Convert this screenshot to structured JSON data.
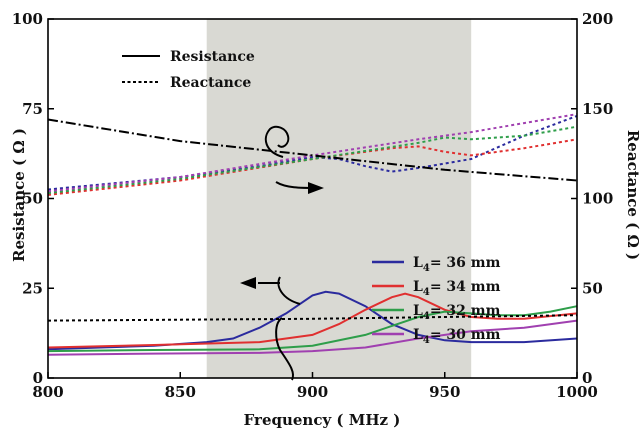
{
  "chart_data": {
    "type": "line",
    "xlabel": "Frequency ( MHz )",
    "ylabel_left": "Resistance ( Ω )",
    "ylabel_right": "Reactance ( Ω )",
    "xlim": [
      800,
      1000
    ],
    "ylim_left": [
      0,
      100
    ],
    "ylim_right": [
      0,
      200
    ],
    "x_ticks": [
      "800",
      "850",
      "900",
      "950",
      "1000"
    ],
    "y_left_ticks": [
      "0",
      "25",
      "50",
      "75",
      "100"
    ],
    "y_right_ticks": [
      "0",
      "50",
      "100",
      "150",
      "200"
    ],
    "shaded_band": [
      860,
      960
    ],
    "style_legend": [
      {
        "label": "Resistance",
        "style": "solid"
      },
      {
        "label": "Reactance",
        "style": "dotted"
      }
    ],
    "series_legend": [
      {
        "label": "L",
        "sub": "4",
        "suffix": "= 36 mm",
        "color": "#2b2b9e"
      },
      {
        "label": "L",
        "sub": "4",
        "suffix": "= 34 mm",
        "color": "#e03030"
      },
      {
        "label": "L",
        "sub": "4",
        "suffix": "= 32 mm",
        "color": "#2e9e4a"
      },
      {
        "label": "L",
        "sub": "4",
        "suffix": "= 30 mm",
        "color": "#a040b0"
      }
    ],
    "series": [
      {
        "type": "resistance",
        "color": "#2b2b9e",
        "axis": "left",
        "x": [
          800,
          820,
          840,
          860,
          870,
          880,
          890,
          900,
          905,
          910,
          920,
          930,
          940,
          950,
          960,
          980,
          1000
        ],
        "y": [
          8,
          8.5,
          9,
          10,
          11,
          14,
          18,
          23,
          24,
          23.5,
          20,
          15,
          12,
          10.5,
          10,
          10,
          11
        ]
      },
      {
        "type": "resistance",
        "color": "#e03030",
        "axis": "left",
        "x": [
          800,
          840,
          880,
          900,
          910,
          920,
          930,
          935,
          940,
          950,
          960,
          970,
          980,
          1000
        ],
        "y": [
          8.5,
          9.2,
          10,
          12,
          15,
          19,
          22.5,
          23.5,
          22.5,
          19,
          17,
          16.5,
          16.5,
          18
        ]
      },
      {
        "type": "resistance",
        "color": "#2e9e4a",
        "axis": "left",
        "x": [
          800,
          840,
          880,
          900,
          920,
          940,
          950,
          960,
          970,
          980,
          990,
          1000
        ],
        "y": [
          7.5,
          7.8,
          8,
          9,
          12,
          17,
          18.5,
          18,
          17.5,
          17.5,
          18.5,
          20
        ]
      },
      {
        "type": "resistance",
        "color": "#a040b0",
        "axis": "left",
        "x": [
          800,
          840,
          880,
          900,
          920,
          940,
          960,
          980,
          1000
        ],
        "y": [
          6.5,
          6.8,
          7,
          7.5,
          8.5,
          11,
          13,
          14,
          16
        ]
      },
      {
        "type": "reactance",
        "color": "#2b2b9e",
        "axis": "right",
        "x": [
          800,
          850,
          880,
          900,
          910,
          920,
          930,
          940,
          960,
          980,
          1000
        ],
        "y": [
          105,
          112,
          118,
          123,
          122,
          118,
          115,
          117,
          122,
          135,
          146
        ]
      },
      {
        "type": "reactance",
        "color": "#e03030",
        "axis": "right",
        "x": [
          800,
          850,
          900,
          930,
          940,
          950,
          960,
          980,
          1000
        ],
        "y": [
          102,
          110,
          122,
          128,
          129,
          126,
          124,
          128,
          133
        ]
      },
      {
        "type": "reactance",
        "color": "#2e9e4a",
        "axis": "right",
        "x": [
          800,
          850,
          900,
          940,
          950,
          960,
          980,
          1000
        ],
        "y": [
          103,
          111,
          122,
          131,
          134,
          133,
          135,
          140
        ]
      },
      {
        "type": "reactance",
        "color": "#a040b0",
        "axis": "right",
        "x": [
          800,
          850,
          900,
          940,
          960,
          980,
          1000
        ],
        "y": [
          104,
          112,
          124,
          133,
          137,
          142,
          147
        ]
      },
      {
        "type": "resistance",
        "color": "#000000",
        "axis": "left",
        "style": "dashdot",
        "x": [
          800,
          850,
          900,
          950,
          1000
        ],
        "y": [
          72,
          66,
          62,
          58,
          55
        ]
      },
      {
        "type": "reactance",
        "color": "#000000",
        "axis": "right",
        "style": "dotted",
        "x": [
          800,
          850,
          900,
          950,
          1000
        ],
        "y": [
          32,
          32.5,
          33,
          34,
          35
        ]
      }
    ]
  }
}
